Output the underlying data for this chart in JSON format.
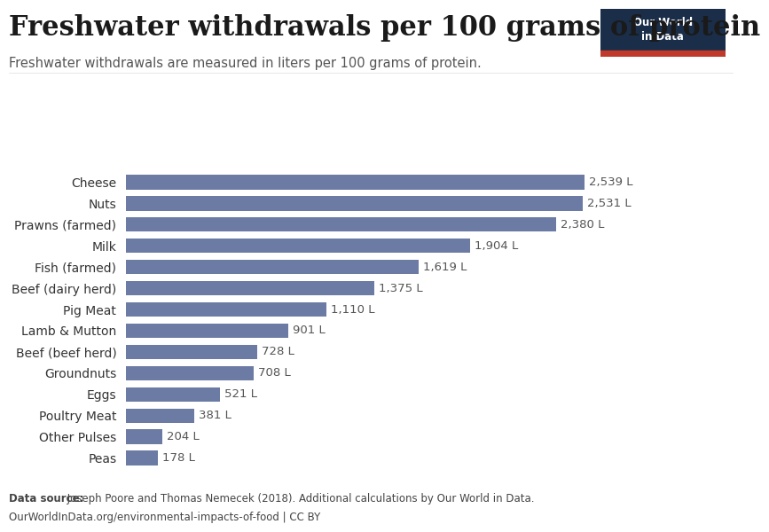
{
  "title": "Freshwater withdrawals per 100 grams of protein",
  "subtitle": "Freshwater withdrawals are measured in liters per 100 grams of protein.",
  "categories": [
    "Cheese",
    "Nuts",
    "Prawns (farmed)",
    "Milk",
    "Fish (farmed)",
    "Beef (dairy herd)",
    "Pig Meat",
    "Lamb & Mutton",
    "Beef (beef herd)",
    "Groundnuts",
    "Eggs",
    "Poultry Meat",
    "Other Pulses",
    "Peas"
  ],
  "values": [
    2539,
    2531,
    2380,
    1904,
    1619,
    1375,
    1110,
    901,
    728,
    708,
    521,
    381,
    204,
    178
  ],
  "bar_color": "#6b7ba4",
  "background_color": "#ffffff",
  "data_source_bold": "Data source:",
  "data_source_text": " Joseph Poore and Thomas Nemecek (2018). Additional calculations by Our World in Data.",
  "data_source_url": "OurWorldInData.org/environmental-impacts-of-food | CC BY",
  "title_fontsize": 22,
  "subtitle_fontsize": 10.5,
  "label_fontsize": 10,
  "value_fontsize": 9.5,
  "datasource_fontsize": 8.5,
  "owid_box_color": "#1a2e4a",
  "owid_text_color": "#ffffff",
  "owid_red_color": "#c0392b"
}
